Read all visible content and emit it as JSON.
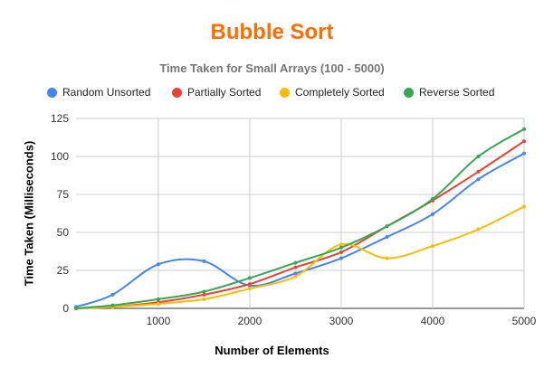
{
  "chart_data": {
    "type": "line",
    "title": "Bubble Sort",
    "subtitle": "Time Taken for Small Arrays (100 - 5000)",
    "xlabel": "Number of Elements",
    "ylabel": "Time Taken (Milliseconds)",
    "xlim": [
      100,
      5000
    ],
    "ylim": [
      0,
      125
    ],
    "xticks": [
      1000,
      2000,
      3000,
      4000,
      5000
    ],
    "yticks": [
      0,
      25,
      50,
      75,
      100,
      125
    ],
    "grid": true,
    "legend_position": "top",
    "x": [
      100,
      500,
      1000,
      1500,
      2000,
      2500,
      3000,
      3500,
      4000,
      4500,
      5000
    ],
    "series": [
      {
        "name": "Random Unsorted",
        "color": "#4285f4",
        "values": [
          1,
          9,
          29,
          31,
          15,
          23,
          33,
          47,
          62,
          85,
          102
        ]
      },
      {
        "name": "Partially Sorted",
        "color": "#ea4335",
        "values": [
          0,
          1,
          4,
          9,
          16,
          27,
          37,
          54,
          71,
          90,
          110
        ]
      },
      {
        "name": "Completely Sorted",
        "color": "#fbbc04",
        "values": [
          0,
          1,
          3,
          6,
          13,
          21,
          42,
          33,
          41,
          52,
          67
        ]
      },
      {
        "name": "Reverse Sorted",
        "color": "#34a853",
        "values": [
          0,
          2,
          6,
          11,
          20,
          30,
          40,
          54,
          72,
          100,
          118
        ]
      }
    ]
  },
  "colors": {
    "title": "#ff6d01",
    "subtitle": "#757575",
    "grid": "#cccccc",
    "axis": "#333333"
  }
}
